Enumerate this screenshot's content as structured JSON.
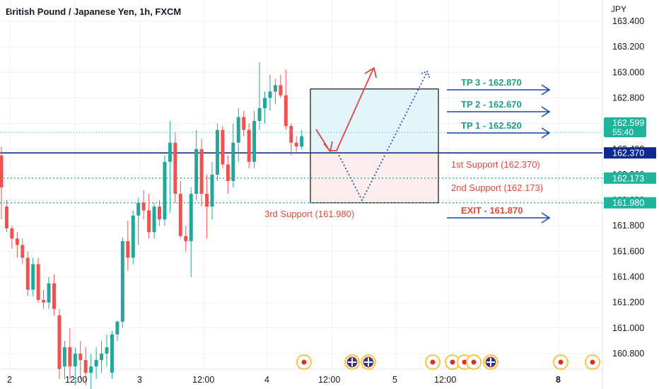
{
  "header": {
    "title": "British Pound / Japanese Yen, 1h, FXCM"
  },
  "colors": {
    "up": "#26a69a",
    "down": "#ef5350",
    "grid": "#eef0f4",
    "axis_text": "#131722",
    "navy": "#0d2a8e",
    "teal_line": "#1fb39c",
    "tp_text": "#1e9e85",
    "red_text": "#e0473c",
    "arrow_blue": "#1d45a8",
    "dot_blue": "#2c52b8",
    "red_arrow": "#e0473c",
    "tag_teal": "#1fb39c",
    "tag_navy": "#0d2a8e",
    "box_top": "#e3f4fa",
    "box_bottom": "#fcecec"
  },
  "chart_data": {
    "type": "candlestick",
    "title": "British Pound / Japanese Yen, 1h, FXCM",
    "y_axis_unit": "JPY",
    "ylim": [
      160.66,
      163.52
    ],
    "y_ticks": [
      "163.400",
      "163.200",
      "163.000",
      "162.800",
      "162.600",
      "162.400",
      "162.200",
      "162.000",
      "161.800",
      "161.600",
      "161.400",
      "161.200",
      "161.000",
      "160.800"
    ],
    "x_ticks": [
      "2",
      "12:00",
      "3",
      "12:00",
      "4",
      "12:00",
      "5",
      "12:00",
      "8"
    ],
    "candles": [
      {
        "o": 162.35,
        "h": 162.42,
        "l": 161.85,
        "c": 162.1
      },
      {
        "o": 161.95,
        "h": 162.0,
        "l": 161.75,
        "c": 161.78
      },
      {
        "o": 161.78,
        "h": 161.8,
        "l": 161.62,
        "c": 161.7
      },
      {
        "o": 161.7,
        "h": 161.75,
        "l": 161.55,
        "c": 161.65
      },
      {
        "o": 161.65,
        "h": 161.7,
        "l": 161.5,
        "c": 161.55
      },
      {
        "o": 161.55,
        "h": 161.6,
        "l": 161.25,
        "c": 161.3
      },
      {
        "o": 161.3,
        "h": 161.55,
        "l": 161.25,
        "c": 161.5
      },
      {
        "o": 161.5,
        "h": 161.55,
        "l": 161.2,
        "c": 161.22
      },
      {
        "o": 161.22,
        "h": 161.3,
        "l": 161.15,
        "c": 161.2
      },
      {
        "o": 161.2,
        "h": 161.4,
        "l": 161.15,
        "c": 161.35
      },
      {
        "o": 161.35,
        "h": 161.42,
        "l": 161.1,
        "c": 161.15
      },
      {
        "o": 161.1,
        "h": 161.15,
        "l": 160.6,
        "c": 160.68
      },
      {
        "o": 160.7,
        "h": 160.9,
        "l": 160.6,
        "c": 160.85
      },
      {
        "o": 160.85,
        "h": 161.0,
        "l": 160.6,
        "c": 160.7
      },
      {
        "o": 160.7,
        "h": 160.85,
        "l": 160.55,
        "c": 160.8
      },
      {
        "o": 160.8,
        "h": 160.9,
        "l": 160.6,
        "c": 160.75
      },
      {
        "o": 160.75,
        "h": 160.85,
        "l": 160.55,
        "c": 160.65
      },
      {
        "o": 160.65,
        "h": 160.8,
        "l": 160.5,
        "c": 160.7
      },
      {
        "o": 160.7,
        "h": 160.85,
        "l": 160.6,
        "c": 160.75
      },
      {
        "o": 160.75,
        "h": 160.9,
        "l": 160.65,
        "c": 160.8
      },
      {
        "o": 160.8,
        "h": 160.95,
        "l": 160.7,
        "c": 160.85
      },
      {
        "o": 160.65,
        "h": 160.98,
        "l": 160.6,
        "c": 160.95
      },
      {
        "o": 160.95,
        "h": 161.06,
        "l": 160.9,
        "c": 161.05
      },
      {
        "o": 161.05,
        "h": 161.71,
        "l": 161.0,
        "c": 161.68
      },
      {
        "o": 161.68,
        "h": 161.84,
        "l": 161.45,
        "c": 161.55
      },
      {
        "o": 161.55,
        "h": 161.92,
        "l": 161.5,
        "c": 161.88
      },
      {
        "o": 161.88,
        "h": 162.02,
        "l": 161.65,
        "c": 161.98
      },
      {
        "o": 161.98,
        "h": 162.08,
        "l": 161.85,
        "c": 161.92
      },
      {
        "o": 161.92,
        "h": 162.05,
        "l": 161.7,
        "c": 161.75
      },
      {
        "o": 161.75,
        "h": 161.98,
        "l": 161.7,
        "c": 161.95
      },
      {
        "o": 161.95,
        "h": 162.0,
        "l": 161.8,
        "c": 161.85
      },
      {
        "o": 161.85,
        "h": 162.35,
        "l": 161.8,
        "c": 162.3
      },
      {
        "o": 162.3,
        "h": 162.62,
        "l": 161.9,
        "c": 162.45
      },
      {
        "o": 162.45,
        "h": 162.53,
        "l": 161.98,
        "c": 162.05
      },
      {
        "o": 162.05,
        "h": 162.15,
        "l": 161.7,
        "c": 161.72
      },
      {
        "o": 161.72,
        "h": 161.8,
        "l": 161.6,
        "c": 161.68
      },
      {
        "o": 161.68,
        "h": 162.1,
        "l": 161.4,
        "c": 162.05
      },
      {
        "o": 162.05,
        "h": 162.55,
        "l": 162.0,
        "c": 162.4
      },
      {
        "o": 162.4,
        "h": 162.48,
        "l": 161.95,
        "c": 162.05
      },
      {
        "o": 162.05,
        "h": 162.2,
        "l": 161.7,
        "c": 161.95
      },
      {
        "o": 161.95,
        "h": 162.3,
        "l": 161.85,
        "c": 162.2
      },
      {
        "o": 162.2,
        "h": 162.6,
        "l": 162.15,
        "c": 162.55
      },
      {
        "o": 162.55,
        "h": 162.58,
        "l": 162.25,
        "c": 162.28
      },
      {
        "o": 162.28,
        "h": 162.35,
        "l": 162.05,
        "c": 162.15
      },
      {
        "o": 162.15,
        "h": 162.6,
        "l": 162.1,
        "c": 162.45
      },
      {
        "o": 162.45,
        "h": 162.72,
        "l": 162.3,
        "c": 162.65
      },
      {
        "o": 162.65,
        "h": 162.7,
        "l": 162.5,
        "c": 162.55
      },
      {
        "o": 162.55,
        "h": 162.6,
        "l": 162.25,
        "c": 162.3
      },
      {
        "o": 162.3,
        "h": 162.7,
        "l": 162.25,
        "c": 162.62
      },
      {
        "o": 162.62,
        "h": 163.08,
        "l": 162.55,
        "c": 162.72
      },
      {
        "o": 162.72,
        "h": 162.85,
        "l": 162.6,
        "c": 162.8
      },
      {
        "o": 162.8,
        "h": 162.98,
        "l": 162.7,
        "c": 162.85
      },
      {
        "o": 162.85,
        "h": 162.95,
        "l": 162.75,
        "c": 162.9
      },
      {
        "o": 162.9,
        "h": 162.98,
        "l": 162.8,
        "c": 162.82
      },
      {
        "o": 162.82,
        "h": 163.02,
        "l": 162.55,
        "c": 162.58
      },
      {
        "o": 162.58,
        "h": 162.6,
        "l": 162.35,
        "c": 162.45
      },
      {
        "o": 162.45,
        "h": 162.5,
        "l": 162.38,
        "c": 162.42
      },
      {
        "o": 162.42,
        "h": 162.55,
        "l": 162.4,
        "c": 162.5
      }
    ],
    "annotations": {
      "horizontal_lines": [
        162.37,
        162.173,
        161.98
      ],
      "price_tags": [
        "162.599",
        "55:40",
        "162.370",
        "162.173",
        "161.980"
      ],
      "labels": [
        {
          "text": "TP 3 - 162.870",
          "price": 162.87
        },
        {
          "text": "TP 2 - 162.670",
          "price": 162.67
        },
        {
          "text": "TP 1 - 162.520",
          "price": 162.52
        },
        {
          "text": "1st Support (162.370)",
          "price": 162.37
        },
        {
          "text": "2nd Support (162.173)",
          "price": 162.173
        },
        {
          "text": "3rd Support (161.980)",
          "price": 161.98
        },
        {
          "text": "EXIT - 161.870",
          "price": 161.87
        }
      ],
      "box": {
        "top": 162.87,
        "mid": 162.37,
        "bottom": 161.98
      }
    },
    "events": [
      "jp",
      "jp",
      "uk",
      "uk",
      "jp",
      "jp",
      "jp",
      "jp",
      "uk",
      "jp",
      "jp"
    ]
  }
}
